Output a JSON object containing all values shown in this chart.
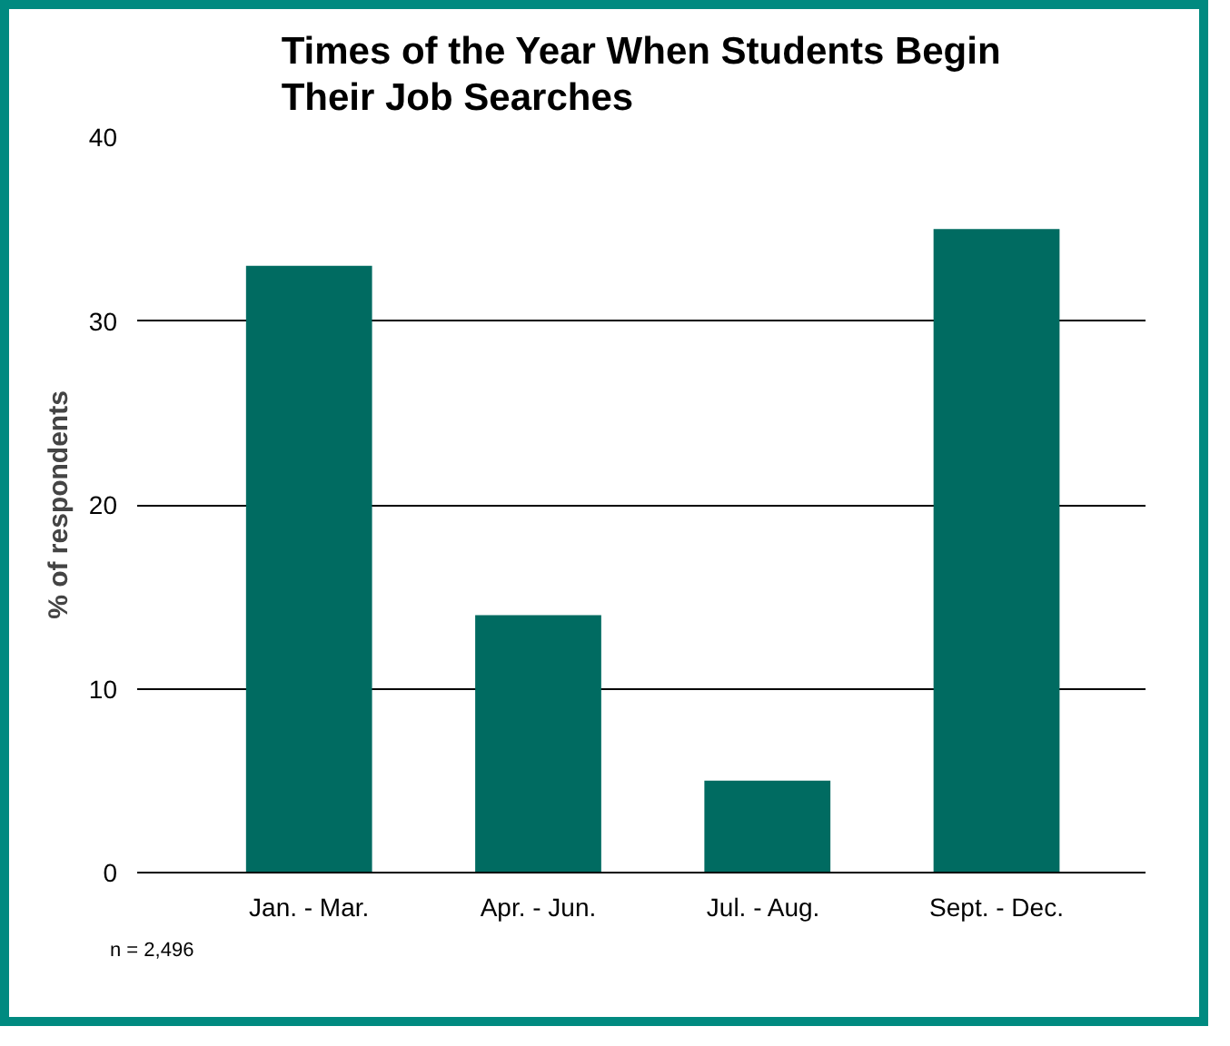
{
  "chart_data": {
    "type": "bar",
    "title": "Times of the Year When Students Begin\nTheir Job Searches",
    "ylabel": "% of respondents",
    "categories": [
      "Jan. - Mar.",
      "Apr. - Jun.",
      "Jul.  - Aug.",
      "Sept. - Dec."
    ],
    "values": [
      33,
      14,
      5,
      35
    ],
    "color": "#006b61",
    "ylim": [
      0,
      40
    ],
    "yticks": [
      0,
      10,
      20,
      30,
      40
    ],
    "grid": "y",
    "annotations": [
      "n = 2,496"
    ]
  }
}
